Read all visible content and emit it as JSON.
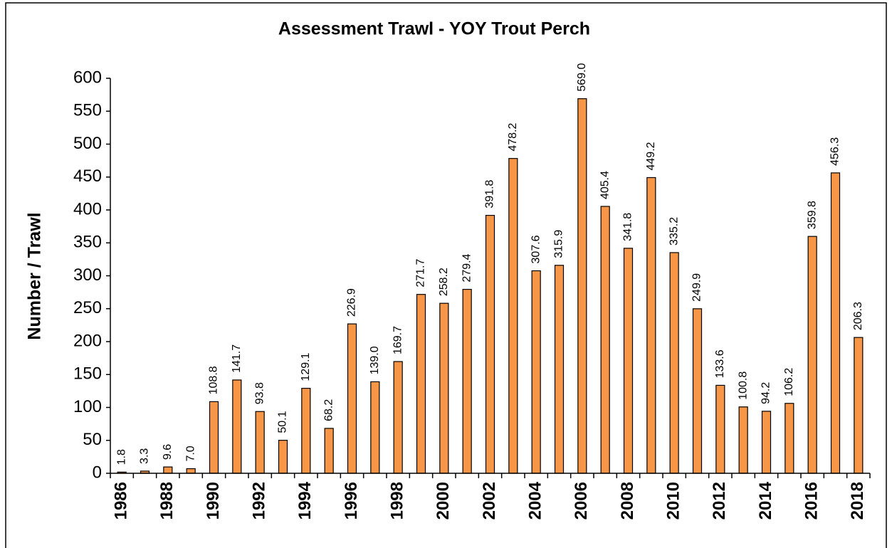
{
  "chart_data": {
    "type": "bar",
    "title": "Assessment Trawl - YOY Trout Perch",
    "y_label": "Number / Trawl",
    "categories": [
      "1986",
      null,
      "1988",
      null,
      "1990",
      null,
      "1992",
      null,
      "1994",
      null,
      "1996",
      null,
      "1998",
      null,
      "2000",
      null,
      "2002",
      null,
      "2004",
      null,
      "2006",
      null,
      "2008",
      null,
      "2010",
      null,
      "2012",
      null,
      "2014",
      null,
      "2016",
      null,
      "2018"
    ],
    "values": [
      1.8,
      3.3,
      9.6,
      7.0,
      108.8,
      141.7,
      93.8,
      50.1,
      129.1,
      68.2,
      226.9,
      139.0,
      169.7,
      271.7,
      258.2,
      279.4,
      391.8,
      478.2,
      307.6,
      315.9,
      569.0,
      405.4,
      341.8,
      449.2,
      335.2,
      249.9,
      133.6,
      100.8,
      94.2,
      106.2,
      359.8,
      456.3,
      206.3
    ],
    "value_labels": [
      "1.8",
      "3.3",
      "9.6",
      "7.0",
      "108.8",
      "141.7",
      "93.8",
      "50.1",
      "129.1",
      "68.2",
      "226.9",
      "139.0",
      "169.7",
      "271.7",
      "258.2",
      "279.4",
      "391.8",
      "478.2",
      "307.6",
      "315.9",
      "569.0",
      "405.4",
      "341.8",
      "449.2",
      "335.2",
      "249.9",
      "133.6",
      "100.8",
      "94.2",
      "106.2",
      "359.8",
      "456.3",
      "206.3"
    ],
    "color": "#f79646",
    "ylim": [
      0,
      600
    ],
    "yticks": [
      0,
      50,
      100,
      150,
      200,
      250,
      300,
      350,
      400,
      450,
      500,
      550,
      600
    ],
    "grid": false
  }
}
